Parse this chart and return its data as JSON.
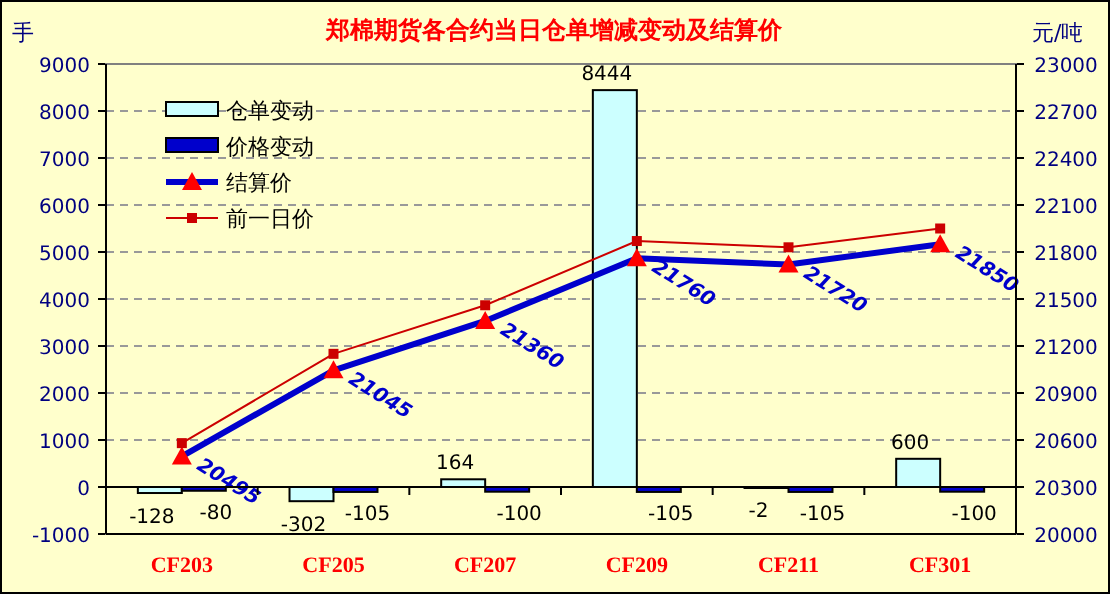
{
  "chart_data": {
    "type": "bar",
    "title": "郑棉期货各合约当日仓单增减变动及结算价",
    "ylabel": "手",
    "y2label": "元/吨",
    "categories": [
      "CF203",
      "CF205",
      "CF207",
      "CF209",
      "CF211",
      "CF301"
    ],
    "ylim": [
      -1000,
      9000
    ],
    "yticks": [
      -1000,
      0,
      1000,
      2000,
      3000,
      4000,
      5000,
      6000,
      7000,
      8000,
      9000
    ],
    "y2lim": [
      20000,
      23000
    ],
    "y2ticks": [
      20000,
      20300,
      20600,
      20900,
      21200,
      21500,
      21800,
      22100,
      22400,
      22700,
      23000
    ],
    "grid": "y",
    "legend": "top left",
    "series": [
      {
        "name": "仓单变动",
        "color": "#ccffff",
        "values": [
          -128,
          -302,
          164,
          8444,
          -2,
          600
        ],
        "value_labels": [
          "-128",
          "-302",
          "164",
          "8444",
          "-2",
          "600"
        ]
      },
      {
        "name": "价格变动",
        "color": "#0000cc",
        "values": [
          -80,
          -105,
          -100,
          -105,
          -105,
          -100
        ],
        "value_labels": [
          "-80",
          "-105",
          "-100",
          "-105",
          "-105",
          "-100"
        ]
      },
      {
        "name": "结算价",
        "type": "line",
        "axis": "y2",
        "color": "#0000cc",
        "marker": "triangle",
        "values": [
          20495,
          21045,
          21360,
          21760,
          21720,
          21850
        ],
        "value_labels": [
          "20495",
          "21045",
          "21360",
          "21760",
          "21720",
          "21850"
        ]
      },
      {
        "name": "前一日价",
        "type": "line",
        "axis": "y2",
        "color": "#cc0000",
        "marker": "square",
        "values": [
          20580,
          21150,
          21460,
          21870,
          21830,
          21950
        ]
      }
    ]
  }
}
